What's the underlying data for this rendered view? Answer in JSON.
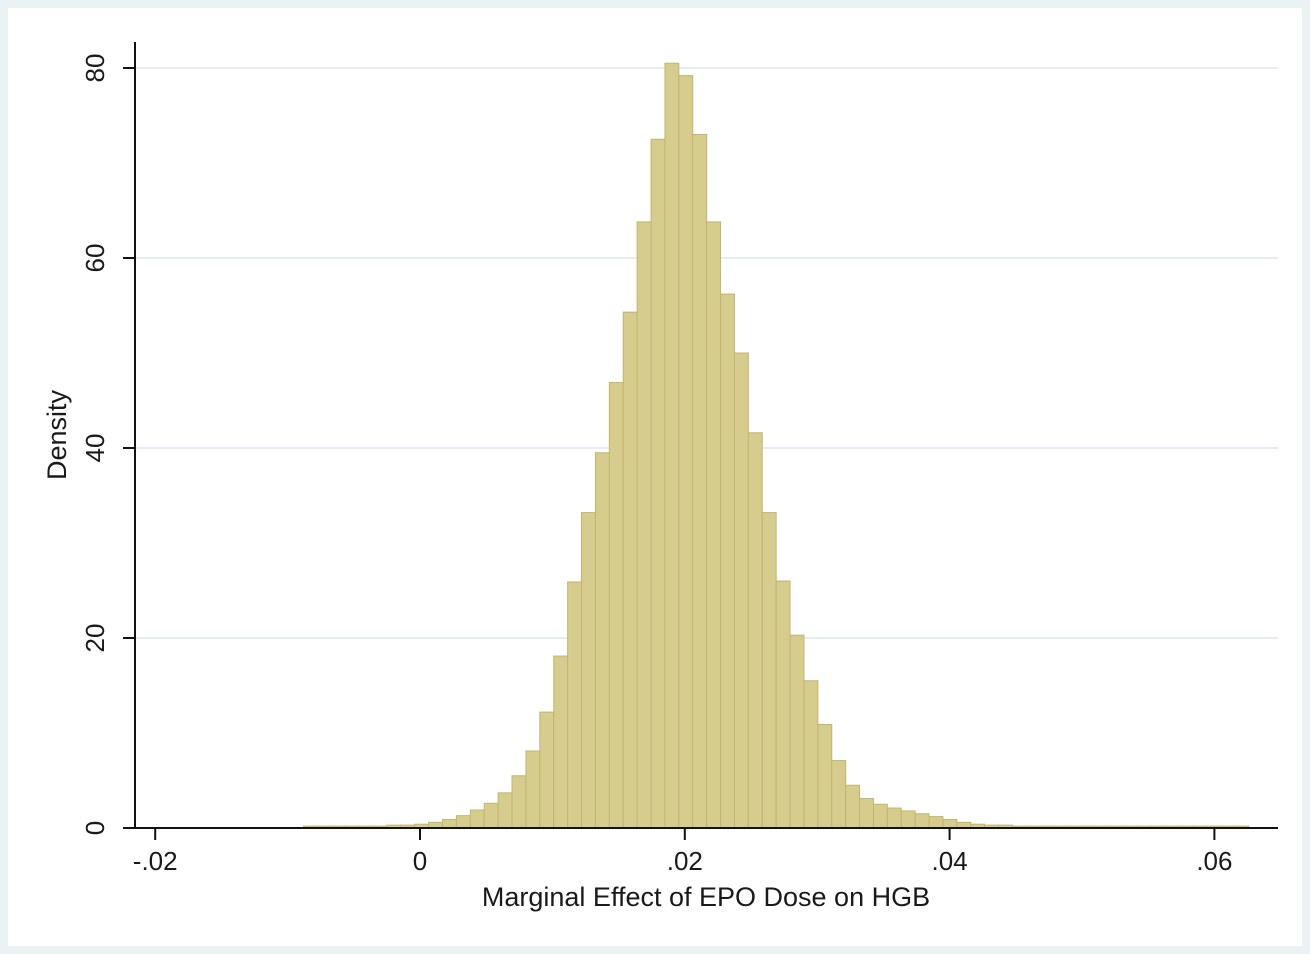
{
  "chart_data": {
    "type": "bar",
    "title": "",
    "xlabel": "Marginal Effect of EPO Dose on HGB",
    "ylabel": "Density",
    "xlim": [
      -0.0205,
      0.0645
    ],
    "ylim": [
      0,
      83
    ],
    "grid": true,
    "x_ticks": [
      {
        "value": -0.02,
        "label": "-.02"
      },
      {
        "value": 0,
        "label": "0"
      },
      {
        "value": 0.02,
        "label": ".02"
      },
      {
        "value": 0.04,
        "label": ".04"
      },
      {
        "value": 0.06,
        "label": ".06"
      }
    ],
    "y_ticks": [
      {
        "value": 0,
        "label": "0"
      },
      {
        "value": 20,
        "label": "20"
      },
      {
        "value": 40,
        "label": "40"
      },
      {
        "value": 60,
        "label": "60"
      },
      {
        "value": 80,
        "label": "80"
      }
    ],
    "bin_start": -0.0088,
    "bin_width": 0.00105,
    "values": [
      0.2,
      0.2,
      0.2,
      0.2,
      0.2,
      0.2,
      0.3,
      0.3,
      0.4,
      0.6,
      0.9,
      1.3,
      1.9,
      2.6,
      3.7,
      5.5,
      8.1,
      12.2,
      18.1,
      25.9,
      33.2,
      39.5,
      46.9,
      54.3,
      63.8,
      72.5,
      80.5,
      79.2,
      73.0,
      63.8,
      56.2,
      50.0,
      41.6,
      33.2,
      26.0,
      20.3,
      15.5,
      10.9,
      7.1,
      4.5,
      3.1,
      2.5,
      2.1,
      1.8,
      1.5,
      1.2,
      0.9,
      0.6,
      0.4,
      0.3,
      0.3,
      0.2,
      0.2,
      0.2,
      0.2,
      0.2,
      0.2,
      0.2,
      0.2,
      0.2,
      0.2,
      0.2,
      0.2,
      0.2,
      0.2,
      0.2,
      0.2,
      0.2
    ],
    "colors": {
      "bar_fill": "#d6cc8e",
      "bar_stroke": "#c3b56f",
      "grid": "#e4eef0",
      "axis": "#111111",
      "plot_bg": "#ffffff",
      "outer_bg": "#eaf2f3"
    }
  }
}
